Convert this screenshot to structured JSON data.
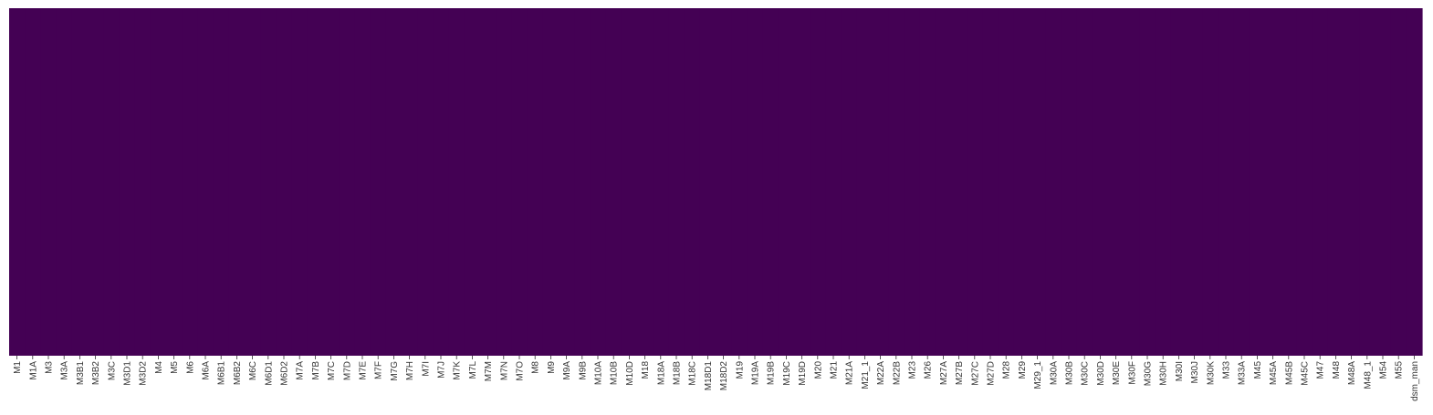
{
  "chart_data": {
    "type": "heatmap",
    "title": "",
    "xlabel": "",
    "ylabel": "",
    "x_tick_labels": [
      "M1",
      "M1A",
      "M3",
      "M3A",
      "M3B1",
      "M3B2",
      "M3C",
      "M3D1",
      "M3D2",
      "M4",
      "M5",
      "M6",
      "M6A",
      "M6B1",
      "M6B2",
      "M6C",
      "M6D1",
      "M6D2",
      "M7A",
      "M7B",
      "M7C",
      "M7D",
      "M7E",
      "M7F",
      "M7G",
      "M7H",
      "M7I",
      "M7J",
      "M7K",
      "M7L",
      "M7M",
      "M7N",
      "M7O",
      "M8",
      "M9",
      "M9A",
      "M9B",
      "M10A",
      "M10B",
      "M10D",
      "M18",
      "M18A",
      "M18B",
      "M18C",
      "M18D1",
      "M18D2",
      "M19",
      "M19A",
      "M19B",
      "M19C",
      "M19D",
      "M20",
      "M21",
      "M21A",
      "M21_1",
      "M22A",
      "M22B",
      "M23",
      "M26",
      "M27A",
      "M27B",
      "M27C",
      "M27D",
      "M28",
      "M29",
      "M29_1",
      "M30A",
      "M30B",
      "M30C",
      "M30D",
      "M30E",
      "M30F",
      "M30G",
      "M30H",
      "M30I",
      "M30J",
      "M30K",
      "M33",
      "M33A",
      "M45",
      "M45A",
      "M45B",
      "M45C",
      "M47",
      "M48",
      "M48A",
      "M48_1",
      "M54",
      "M55",
      "dsm_man"
    ],
    "y_ticks_visible": false,
    "cell_value_all": 0,
    "colormap": "viridis",
    "colorbar": false,
    "grid": false
  },
  "colors": {
    "cell_fill": "#440154",
    "background": "#ffffff",
    "tick_text": "#333333"
  }
}
